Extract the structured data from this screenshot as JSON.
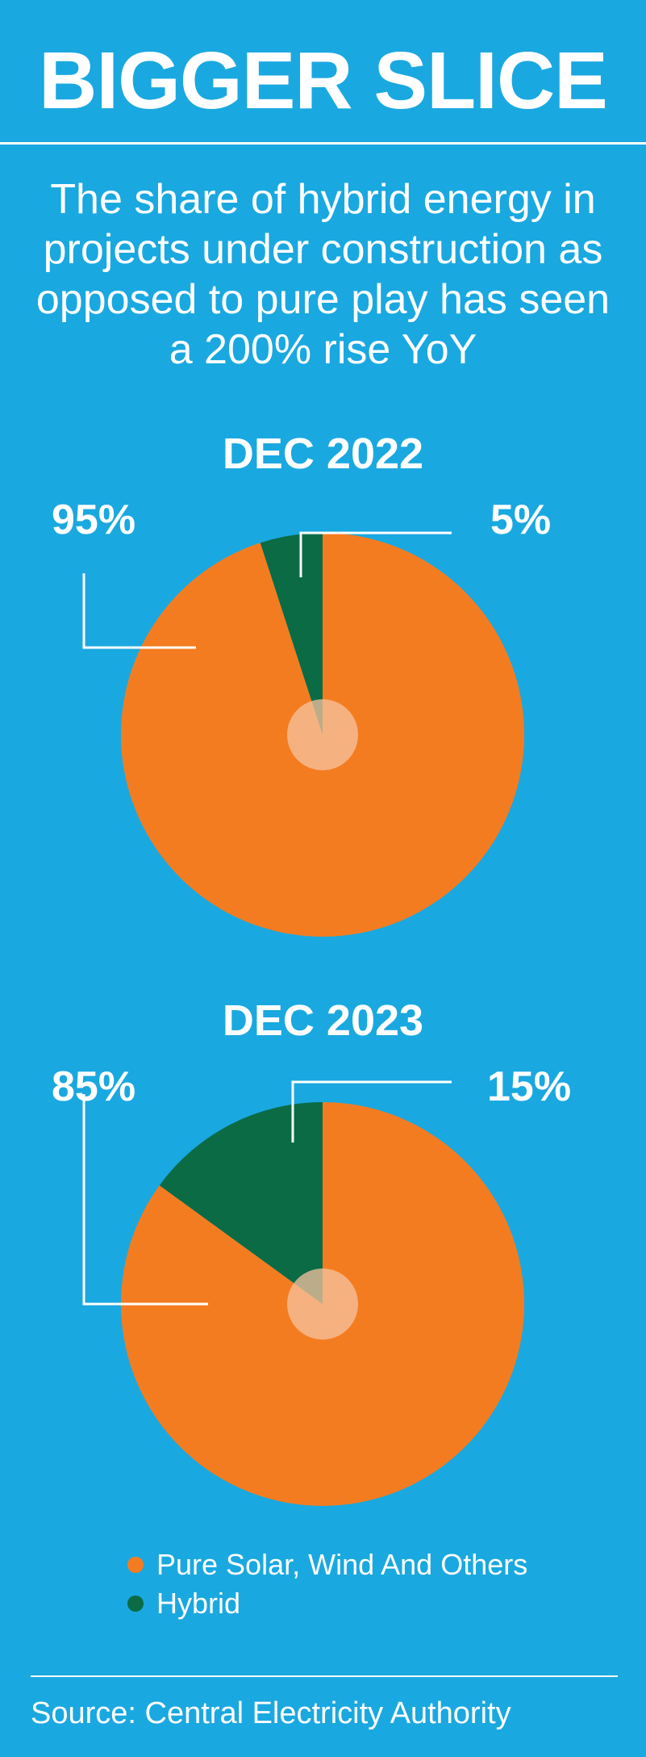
{
  "header": {
    "title": "BIGGER SLICE",
    "subtitle": "The share of hybrid energy in projects under construction as opposed to pure play has seen a 200% rise YoY"
  },
  "chart_data": [
    {
      "type": "pie",
      "title": "DEC 2022",
      "labels": [
        "Pure Solar, Wind And Others",
        "Hybrid"
      ],
      "values": [
        95,
        5
      ],
      "value_labels": [
        "95%",
        "5%"
      ],
      "colors": [
        "#f47c20",
        "#0a6b45"
      ]
    },
    {
      "type": "pie",
      "title": "DEC 2023",
      "labels": [
        "Pure Solar, Wind And Others",
        "Hybrid"
      ],
      "values": [
        85,
        15
      ],
      "value_labels": [
        "85%",
        "15%"
      ],
      "colors": [
        "#f47c20",
        "#0a6b45"
      ]
    }
  ],
  "legend": {
    "placement": "bottom-left",
    "items": [
      {
        "label": "Pure Solar, Wind And Others",
        "color": "#f47c20"
      },
      {
        "label": "Hybrid",
        "color": "#0a6b45"
      }
    ]
  },
  "footer": {
    "source": "Source: Central Electricity Authority"
  },
  "colors": {
    "background": "#1aa8e0",
    "text": "#ffffff",
    "center_circle": "#f7c3a0"
  }
}
